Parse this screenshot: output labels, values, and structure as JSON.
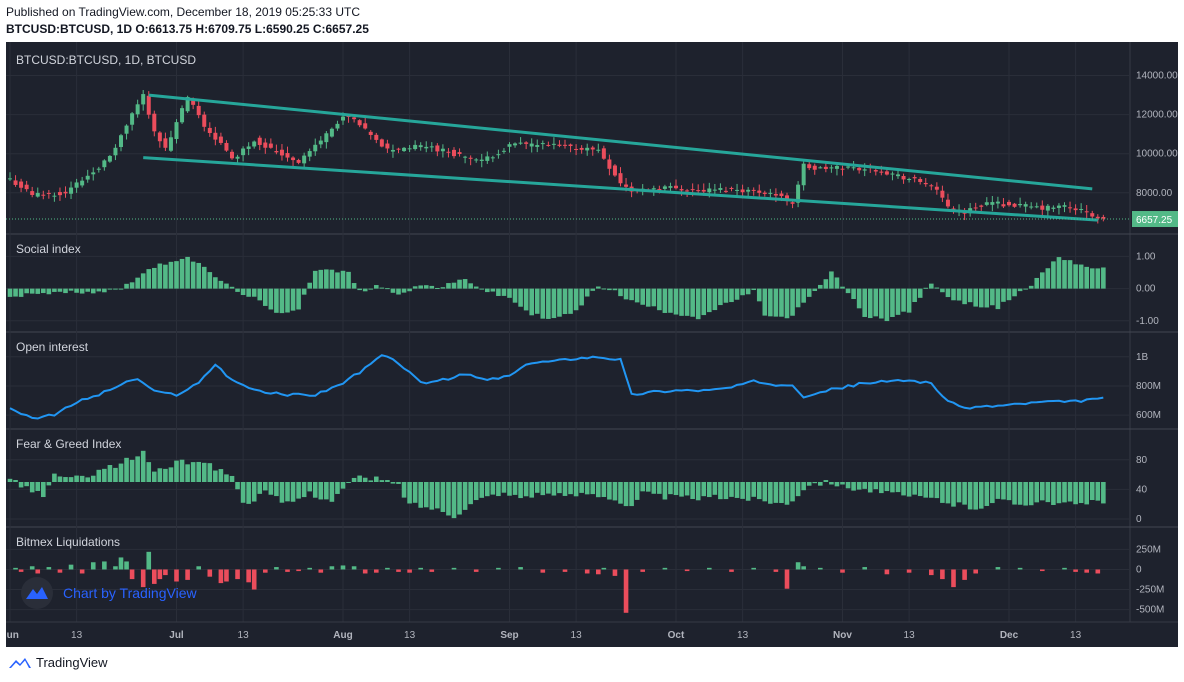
{
  "header": {
    "published": "Published on TradingView.com, December 18, 2019 05:25:33 UTC",
    "symbol": "BTCUSD:BTCUSD, 1D",
    "o": "O:6613.75",
    "h": "H:6709.75",
    "l": "L:6590.25",
    "c": "C:6657.25"
  },
  "footer": {
    "brand": "TradingView",
    "watermark": "Chart by TradingView"
  },
  "colors": {
    "bg": "#1e222d",
    "up": "#53b987",
    "down": "#eb4d5c",
    "channel": "#26a69a",
    "oi": "#2196f3",
    "axis_text": "#b2b5be",
    "grid": "#2a2e39"
  },
  "chart_data": [
    {
      "type": "candlestick",
      "title": "BTCUSD:BTCUSD, 1D, BTCUSD",
      "last_price": "6657.25",
      "y_ticks": [
        "14000.00",
        "12000.00",
        "10000.00",
        "8000.00"
      ],
      "ylim": [
        6300,
        15000
      ],
      "x_ticks": [
        "Jun",
        "13",
        "Jul",
        "13",
        "Aug",
        "13",
        "Sep",
        "13",
        "Oct",
        "13",
        "Nov",
        "13",
        "Dec",
        "13"
      ],
      "close_anchors": [
        [
          0,
          8700
        ],
        [
          4,
          7900
        ],
        [
          10,
          8000
        ],
        [
          18,
          9800
        ],
        [
          22,
          12000
        ],
        [
          24,
          13000
        ],
        [
          26,
          11200
        ],
        [
          28,
          10200
        ],
        [
          32,
          12900
        ],
        [
          35,
          11400
        ],
        [
          38,
          10500
        ],
        [
          40,
          9700
        ],
        [
          44,
          10700
        ],
        [
          48,
          10100
        ],
        [
          52,
          9600
        ],
        [
          55,
          10400
        ],
        [
          60,
          11900
        ],
        [
          62,
          11700
        ],
        [
          65,
          10900
        ],
        [
          68,
          10200
        ],
        [
          75,
          10400
        ],
        [
          80,
          10000
        ],
        [
          85,
          9600
        ],
        [
          90,
          10400
        ],
        [
          92,
          10500
        ],
        [
          98,
          10400
        ],
        [
          106,
          10200
        ],
        [
          110,
          8500
        ],
        [
          112,
          8100
        ],
        [
          118,
          8300
        ],
        [
          124,
          8100
        ],
        [
          130,
          8200
        ],
        [
          137,
          8000
        ],
        [
          141,
          7500
        ],
        [
          143,
          9400
        ],
        [
          145,
          9200
        ],
        [
          150,
          9300
        ],
        [
          156,
          9200
        ],
        [
          162,
          8700
        ],
        [
          166,
          8400
        ],
        [
          169,
          7300
        ],
        [
          172,
          7000
        ],
        [
          176,
          7500
        ],
        [
          180,
          7400
        ],
        [
          186,
          7200
        ],
        [
          190,
          7300
        ],
        [
          193,
          7100
        ],
        [
          196,
          6657
        ]
      ],
      "channel_upper": [
        [
          25,
          13000
        ],
        [
          195,
          8200
        ]
      ],
      "channel_lower": [
        [
          24,
          9800
        ],
        [
          196,
          6600
        ]
      ]
    },
    {
      "type": "bar",
      "title": "Social index",
      "y_ticks": [
        "1.00",
        "0.00",
        "-1.00"
      ],
      "ylim": [
        -1.1,
        1.2
      ],
      "anchors": [
        [
          0,
          -0.3
        ],
        [
          4,
          -0.1
        ],
        [
          8,
          -0.15
        ],
        [
          12,
          -0.1
        ],
        [
          16,
          -0.1
        ],
        [
          20,
          0.0
        ],
        [
          24,
          0.5
        ],
        [
          28,
          0.8
        ],
        [
          32,
          1.0
        ],
        [
          36,
          0.5
        ],
        [
          40,
          0.0
        ],
        [
          44,
          -0.3
        ],
        [
          48,
          -0.8
        ],
        [
          52,
          -0.6
        ],
        [
          55,
          0.6
        ],
        [
          58,
          0.55
        ],
        [
          61,
          0.5
        ],
        [
          63,
          -0.1
        ],
        [
          66,
          0.1
        ],
        [
          70,
          -0.15
        ],
        [
          74,
          0.1
        ],
        [
          78,
          0.05
        ],
        [
          82,
          0.3
        ],
        [
          86,
          -0.1
        ],
        [
          90,
          -0.3
        ],
        [
          94,
          -0.8
        ],
        [
          98,
          -0.95
        ],
        [
          102,
          -0.7
        ],
        [
          106,
          0.1
        ],
        [
          108,
          0.0
        ],
        [
          112,
          -0.4
        ],
        [
          118,
          -0.7
        ],
        [
          124,
          -0.9
        ],
        [
          130,
          -0.4
        ],
        [
          134,
          -0.1
        ],
        [
          136,
          -0.8
        ],
        [
          140,
          -0.95
        ],
        [
          144,
          -0.3
        ],
        [
          148,
          0.5
        ],
        [
          150,
          0.1
        ],
        [
          154,
          -0.85
        ],
        [
          158,
          -0.95
        ],
        [
          162,
          -0.7
        ],
        [
          166,
          0.2
        ],
        [
          170,
          -0.4
        ],
        [
          174,
          -0.5
        ],
        [
          178,
          -0.6
        ],
        [
          181,
          -0.2
        ],
        [
          184,
          0.1
        ],
        [
          186,
          0.5
        ],
        [
          189,
          1.0
        ],
        [
          192,
          0.8
        ],
        [
          196,
          0.6
        ]
      ]
    },
    {
      "type": "line",
      "title": "Open interest",
      "y_ticks": [
        "1B",
        "800M",
        "600M"
      ],
      "ylim": [
        560000000,
        1060000000
      ],
      "anchors": [
        [
          0,
          650000000
        ],
        [
          4,
          580000000
        ],
        [
          8,
          600000000
        ],
        [
          12,
          690000000
        ],
        [
          16,
          740000000
        ],
        [
          20,
          810000000
        ],
        [
          23,
          850000000
        ],
        [
          26,
          760000000
        ],
        [
          30,
          740000000
        ],
        [
          34,
          820000000
        ],
        [
          37,
          950000000
        ],
        [
          40,
          840000000
        ],
        [
          45,
          760000000
        ],
        [
          50,
          740000000
        ],
        [
          55,
          740000000
        ],
        [
          60,
          820000000
        ],
        [
          64,
          920000000
        ],
        [
          67,
          1010000000
        ],
        [
          70,
          960000000
        ],
        [
          74,
          820000000
        ],
        [
          78,
          840000000
        ],
        [
          82,
          880000000
        ],
        [
          86,
          840000000
        ],
        [
          90,
          870000000
        ],
        [
          94,
          960000000
        ],
        [
          98,
          970000000
        ],
        [
          102,
          990000000
        ],
        [
          106,
          1000000000
        ],
        [
          110,
          980000000
        ],
        [
          112,
          740000000
        ],
        [
          116,
          760000000
        ],
        [
          120,
          770000000
        ],
        [
          126,
          770000000
        ],
        [
          130,
          790000000
        ],
        [
          134,
          830000000
        ],
        [
          138,
          810000000
        ],
        [
          141,
          810000000
        ],
        [
          143,
          730000000
        ],
        [
          146,
          760000000
        ],
        [
          150,
          790000000
        ],
        [
          154,
          820000000
        ],
        [
          158,
          830000000
        ],
        [
          162,
          840000000
        ],
        [
          166,
          820000000
        ],
        [
          169,
          690000000
        ],
        [
          172,
          650000000
        ],
        [
          176,
          660000000
        ],
        [
          180,
          670000000
        ],
        [
          186,
          690000000
        ],
        [
          190,
          690000000
        ],
        [
          194,
          700000000
        ],
        [
          196,
          720000000
        ]
      ]
    },
    {
      "type": "bar",
      "title": "Fear & Greed Index",
      "y_ticks": [
        "80",
        "40",
        "0"
      ],
      "ylim": [
        0,
        100
      ],
      "anchors": [
        [
          0,
          52
        ],
        [
          4,
          40
        ],
        [
          6,
          28
        ],
        [
          8,
          60
        ],
        [
          12,
          55
        ],
        [
          16,
          65
        ],
        [
          20,
          75
        ],
        [
          24,
          90
        ],
        [
          26,
          65
        ],
        [
          30,
          75
        ],
        [
          34,
          80
        ],
        [
          38,
          65
        ],
        [
          40,
          60
        ],
        [
          42,
          20
        ],
        [
          46,
          35
        ],
        [
          50,
          20
        ],
        [
          54,
          35
        ],
        [
          58,
          25
        ],
        [
          62,
          55
        ],
        [
          66,
          55
        ],
        [
          70,
          45
        ],
        [
          72,
          20
        ],
        [
          76,
          15
        ],
        [
          80,
          5
        ],
        [
          84,
          25
        ],
        [
          88,
          35
        ],
        [
          92,
          30
        ],
        [
          96,
          35
        ],
        [
          100,
          30
        ],
        [
          104,
          35
        ],
        [
          108,
          30
        ],
        [
          112,
          15
        ],
        [
          114,
          35
        ],
        [
          118,
          30
        ],
        [
          124,
          28
        ],
        [
          130,
          30
        ],
        [
          136,
          25
        ],
        [
          140,
          20
        ],
        [
          144,
          48
        ],
        [
          148,
          50
        ],
        [
          150,
          44
        ],
        [
          154,
          40
        ],
        [
          158,
          35
        ],
        [
          162,
          30
        ],
        [
          166,
          28
        ],
        [
          170,
          20
        ],
        [
          174,
          15
        ],
        [
          178,
          25
        ],
        [
          182,
          20
        ],
        [
          186,
          25
        ],
        [
          190,
          20
        ],
        [
          194,
          20
        ],
        [
          196,
          25
        ]
      ]
    },
    {
      "type": "bar",
      "title": "Bitmex Liquidations",
      "y_ticks": [
        "250M",
        "0",
        "-250M",
        "-500M"
      ],
      "ylim": [
        -580000000,
        330000000
      ],
      "bars": [
        [
          1,
          20000000
        ],
        [
          2,
          -30000000
        ],
        [
          4,
          40000000
        ],
        [
          5,
          -50000000
        ],
        [
          7,
          30000000
        ],
        [
          9,
          -40000000
        ],
        [
          11,
          60000000
        ],
        [
          13,
          -50000000
        ],
        [
          15,
          90000000
        ],
        [
          17,
          100000000
        ],
        [
          19,
          40000000
        ],
        [
          20,
          150000000
        ],
        [
          21,
          100000000
        ],
        [
          22,
          -120000000
        ],
        [
          24,
          -220000000
        ],
        [
          25,
          220000000
        ],
        [
          26,
          -180000000
        ],
        [
          27,
          -120000000
        ],
        [
          28,
          -70000000
        ],
        [
          30,
          -150000000
        ],
        [
          32,
          -130000000
        ],
        [
          34,
          40000000
        ],
        [
          36,
          -90000000
        ],
        [
          38,
          -170000000
        ],
        [
          39,
          -150000000
        ],
        [
          41,
          -120000000
        ],
        [
          43,
          -160000000
        ],
        [
          44,
          -250000000
        ],
        [
          46,
          -40000000
        ],
        [
          48,
          30000000
        ],
        [
          50,
          -30000000
        ],
        [
          52,
          -20000000
        ],
        [
          54,
          20000000
        ],
        [
          56,
          -40000000
        ],
        [
          58,
          40000000
        ],
        [
          60,
          50000000
        ],
        [
          62,
          40000000
        ],
        [
          64,
          -50000000
        ],
        [
          66,
          -40000000
        ],
        [
          68,
          20000000
        ],
        [
          70,
          -30000000
        ],
        [
          72,
          -40000000
        ],
        [
          74,
          20000000
        ],
        [
          76,
          -30000000
        ],
        [
          80,
          20000000
        ],
        [
          84,
          -30000000
        ],
        [
          88,
          20000000
        ],
        [
          92,
          30000000
        ],
        [
          96,
          -40000000
        ],
        [
          100,
          -30000000
        ],
        [
          104,
          -50000000
        ],
        [
          106,
          -60000000
        ],
        [
          107,
          20000000
        ],
        [
          109,
          -80000000
        ],
        [
          111,
          -540000000
        ],
        [
          114,
          -30000000
        ],
        [
          118,
          20000000
        ],
        [
          122,
          -20000000
        ],
        [
          126,
          20000000
        ],
        [
          130,
          -30000000
        ],
        [
          134,
          20000000
        ],
        [
          138,
          -30000000
        ],
        [
          140,
          -240000000
        ],
        [
          142,
          90000000
        ],
        [
          143,
          40000000
        ],
        [
          146,
          20000000
        ],
        [
          150,
          -40000000
        ],
        [
          154,
          30000000
        ],
        [
          158,
          -60000000
        ],
        [
          162,
          -40000000
        ],
        [
          166,
          -70000000
        ],
        [
          168,
          -120000000
        ],
        [
          170,
          -220000000
        ],
        [
          172,
          -130000000
        ],
        [
          174,
          -50000000
        ],
        [
          178,
          30000000
        ],
        [
          182,
          20000000
        ],
        [
          186,
          -20000000
        ],
        [
          190,
          20000000
        ],
        [
          192,
          -30000000
        ],
        [
          194,
          -40000000
        ],
        [
          196,
          -50000000
        ]
      ]
    }
  ]
}
